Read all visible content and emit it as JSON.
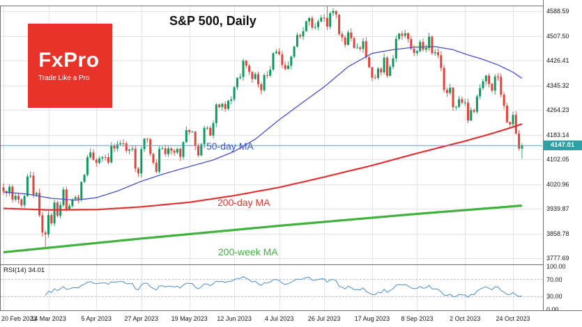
{
  "meta": {
    "title": "S&P 500, Daily",
    "instrument": "S&P 500",
    "timeframe": "Daily"
  },
  "logo": {
    "name": "FxPro",
    "tagline": "Trade Like a Pro"
  },
  "labels": {
    "ma50": "50-day MA",
    "ma200d": "200-day MA",
    "ma200w": "200-week MA",
    "rsi": "RSI(14) 34.01"
  },
  "current_price": "4147.01",
  "colors": {
    "up": "#0f9960",
    "down": "#e0443a",
    "ma50": "#4650c8",
    "ma200d": "#e03232",
    "ma200w": "#41b13e",
    "price_line": "#3fb3b6",
    "badge_bg": "#2f9fa6",
    "rsi": "#4a8ec2",
    "rsi_level": "#b9bfc9",
    "grid": "#e4e4e4",
    "frame": "#6e6e6e",
    "text": "#161616",
    "logo_bg": "#e8332a"
  },
  "chart_data": {
    "type": "candlestick",
    "title": "S&P 500, Daily",
    "ylim": [
      3761,
      4607
    ],
    "current_price": 4147.01,
    "y_ticks": [
      4588.59,
      4507.5,
      4426.41,
      4345.32,
      4264.23,
      4183.14,
      4102.05,
      4020.96,
      3939.87,
      3858.78,
      3777.69
    ],
    "rsi_ticks": [
      100,
      70,
      30,
      0
    ],
    "x_ticks": {
      "labels": [
        "20 Feb 2023",
        "14 Mar 2023",
        "5 Apr 2023",
        "27 Apr 2023",
        "19 May 2023",
        "12 Jun 2023",
        "4 Jul 2023",
        "26 Jul 2023",
        "17 Aug 2023",
        "8 Sep 2023",
        "2 Oct 2023",
        "24 Oct 2023"
      ],
      "candle_indices": [
        0,
        15,
        31,
        46,
        62,
        77,
        92,
        107,
        123,
        138,
        154,
        170
      ]
    },
    "candles": {
      "first_open": 4010.0,
      "closes": [
        3997.34,
        3991.05,
        4012.32,
        3970.04,
        3982.24,
        3970.15,
        3951.39,
        3981.35,
        4045.64,
        4048.42,
        3986.37,
        3992.01,
        3918.32,
        3861.59,
        3855.76,
        3919.29,
        3891.93,
        3960.28,
        3916.64,
        3951.57,
        4002.87,
        3936.97,
        3948.72,
        3970.99,
        3977.53,
        3971.27,
        4027.81,
        4050.83,
        4109.31,
        4124.51,
        4100.6,
        4090.38,
        4105.02,
        4109.11,
        4108.94,
        4091.95,
        4146.22,
        4137.64,
        4151.32,
        4154.87,
        4154.52,
        4129.79,
        4133.52,
        4137.04,
        4071.63,
        4055.99,
        4135.35,
        4169.48,
        4167.87,
        4119.58,
        4090.75,
        4061.22,
        4136.25,
        4138.12,
        4119.17,
        4137.64,
        4130.62,
        4124.08,
        4136.28,
        4109.9,
        4158.77,
        4198.05,
        4191.98,
        4192.63,
        4145.58,
        4115.24,
        4151.28,
        4205.45,
        4205.52,
        4179.83,
        4221.02,
        4282.37,
        4273.79,
        4283.85,
        4267.52,
        4293.93,
        4298.86,
        4338.93,
        4369.01,
        4372.59,
        4425.84,
        4409.59,
        4388.71,
        4365.69,
        4381.89,
        4348.33,
        4328.82,
        4378.41,
        4376.86,
        4396.44,
        4450.38,
        4455.59,
        4446.82,
        4411.59,
        4398.95,
        4409.53,
        4439.26,
        4472.16,
        4510.04,
        4505.42,
        4522.79,
        4554.98,
        4565.72,
        4534.87,
        4536.34,
        4554.64,
        4567.46,
        4566.75,
        4537.41,
        4582.23,
        4588.96,
        4576.73,
        4513.39,
        4501.89,
        4478.03,
        4518.44,
        4499.38,
        4467.71,
        4468.83,
        4464.05,
        4489.72,
        4437.86,
        4404.33,
        4370.36,
        4369.71,
        4399.77,
        4387.55,
        4436.01,
        4376.31,
        4405.71,
        4433.31,
        4497.63,
        4514.87,
        4507.66,
        4515.77,
        4496.83,
        4465.48,
        4451.14,
        4457.49,
        4487.46,
        4461.9,
        4467.44,
        4505.1,
        4450.32,
        4453.53,
        4443.95,
        4402.2,
        4330.0,
        4320.06,
        4337.44,
        4273.53,
        4274.51,
        4299.7,
        4288.05,
        4288.39,
        4229.45,
        4263.75,
        4258.19,
        4308.5,
        4335.66,
        4358.24,
        4376.95,
        4349.61,
        4327.78,
        4373.63,
        4373.2,
        4314.6,
        4278.0,
        4224.16,
        4217.04,
        4247.68,
        4186.77,
        4137.23,
        4147.01
      ]
    },
    "wick_overrides": [
      {
        "i": 14,
        "low": 3808.86
      },
      {
        "i": 108,
        "high": 4607.07
      },
      {
        "i": 173,
        "low": 4103.78
      }
    ],
    "overlays": [
      {
        "name": "50-day MA",
        "key": "ma50",
        "anchors": [
          [
            0,
            3995
          ],
          [
            8,
            3988
          ],
          [
            16,
            3974
          ],
          [
            24,
            3968
          ],
          [
            31,
            3976
          ],
          [
            38,
            3998
          ],
          [
            46,
            4030
          ],
          [
            54,
            4056
          ],
          [
            62,
            4078
          ],
          [
            70,
            4100
          ],
          [
            77,
            4128
          ],
          [
            84,
            4168
          ],
          [
            92,
            4232
          ],
          [
            100,
            4290
          ],
          [
            107,
            4340
          ],
          [
            115,
            4406
          ],
          [
            123,
            4450
          ],
          [
            130,
            4462
          ],
          [
            137,
            4470
          ],
          [
            144,
            4472
          ],
          [
            150,
            4462
          ],
          [
            154,
            4448
          ],
          [
            160,
            4430
          ],
          [
            165,
            4412
          ],
          [
            170,
            4388
          ],
          [
            173,
            4368
          ]
        ]
      },
      {
        "name": "200-day MA",
        "key": "ma200d",
        "anchors": [
          [
            0,
            3941
          ],
          [
            15,
            3936
          ],
          [
            31,
            3937
          ],
          [
            46,
            3946
          ],
          [
            62,
            3961
          ],
          [
            77,
            3983
          ],
          [
            92,
            4010
          ],
          [
            107,
            4044
          ],
          [
            123,
            4082
          ],
          [
            138,
            4122
          ],
          [
            154,
            4162
          ],
          [
            162,
            4184
          ],
          [
            170,
            4208
          ],
          [
            173,
            4218
          ]
        ]
      },
      {
        "name": "200-week MA",
        "key": "ma200w",
        "anchors": [
          [
            0,
            3797
          ],
          [
            46,
            3842
          ],
          [
            92,
            3884
          ],
          [
            138,
            3923
          ],
          [
            173,
            3950
          ]
        ]
      }
    ],
    "indicator": {
      "type": "RSI",
      "period": 14,
      "last_value": 34.01,
      "levels": [
        70,
        30
      ]
    }
  }
}
